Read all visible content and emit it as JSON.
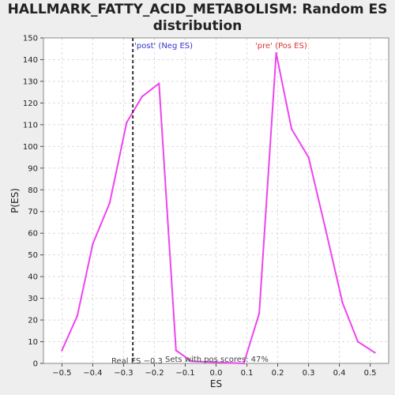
{
  "chart_data": {
    "type": "line",
    "title_line1": "HALLMARK_FATTY_ACID_METABOLISM: Random ES",
    "title_line2": "distribution",
    "xlabel": "ES",
    "ylabel": "P(ES)",
    "xlim": [
      -0.56,
      0.56
    ],
    "ylim": [
      0,
      150
    ],
    "xticks": [
      -0.5,
      -0.4,
      -0.3,
      -0.2,
      -0.1,
      0.0,
      0.1,
      0.2,
      0.3,
      0.4,
      0.5
    ],
    "xtick_labels": [
      "−0.5",
      "−0.4",
      "−0.3",
      "−0.2",
      "−0.1",
      "0.0",
      "0.1",
      "0.2",
      "0.3",
      "0.4",
      "0.5"
    ],
    "yticks": [
      0,
      10,
      20,
      30,
      40,
      50,
      60,
      70,
      80,
      90,
      100,
      110,
      120,
      130,
      140,
      150
    ],
    "grid": true,
    "series": [
      {
        "color": "#ee44ee",
        "x": [
          -0.5,
          -0.45,
          -0.4,
          -0.345,
          -0.29,
          -0.24,
          -0.185,
          -0.13,
          -0.08,
          0.09,
          0.14,
          0.195,
          0.245,
          0.3,
          0.355,
          0.41,
          0.46,
          0.515
        ],
        "y": [
          6,
          22,
          55,
          74,
          111,
          123,
          129,
          6,
          1,
          0,
          23,
          143,
          108,
          95,
          62,
          28,
          10,
          5
        ]
      }
    ],
    "real_es": -0.27,
    "annotations": {
      "neg_label": "'post' (Neg ES)",
      "pos_label": "'pre' (Pos ES)",
      "real_es_label": "Real ES −0.3",
      "pos_scores_label": "Sets with pos scores: 47%"
    },
    "colors": {
      "line": "#ee44ee",
      "neg": "#3333cc",
      "pos": "#dd3333",
      "grid": "#dddddd",
      "plot_bg": "#ffffff",
      "page_bg": "#eeeeee"
    }
  }
}
